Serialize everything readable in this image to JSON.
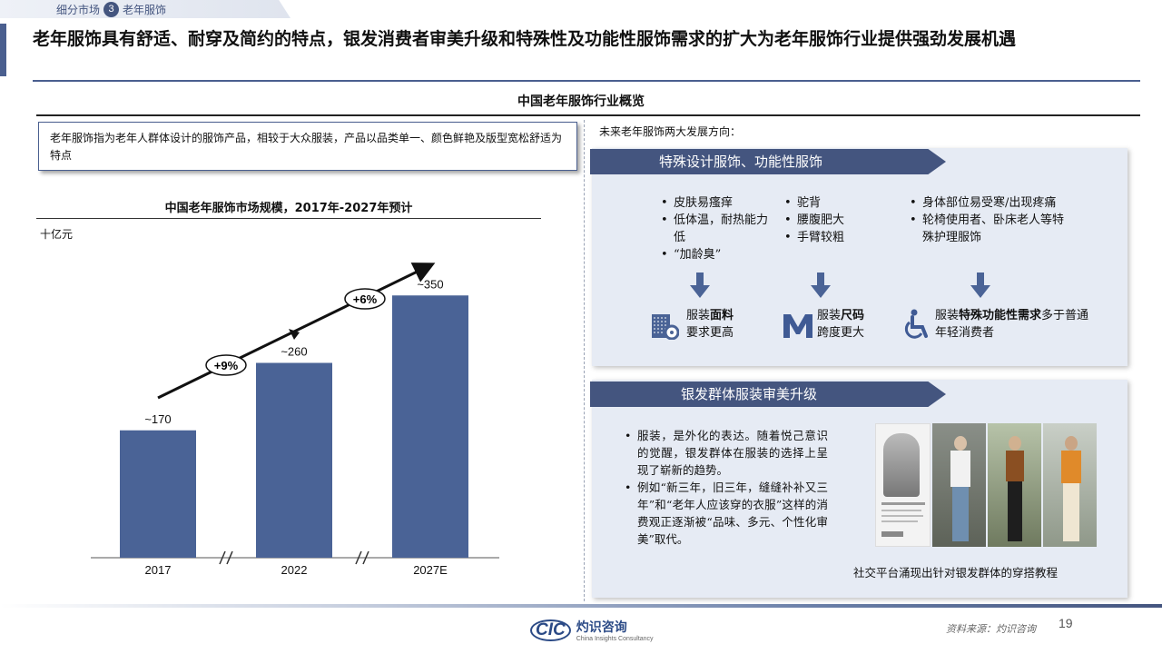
{
  "breadcrumb": {
    "section": "细分市场",
    "number": "3",
    "topic": "老年服饰"
  },
  "headline": "老年服饰具有舒适、耐穿及简约的特点，银发消费者审美升级和特殊性及功能性服饰需求的扩大为老年服饰行业提供强劲发展机遇",
  "section_title": "中国老年服饰行业概览",
  "definition": "老年服饰指为老年人群体设计的服饰产品，相较于大众服装，产品以品类单一、颜色鲜艳及版型宽松舒适为特点",
  "chart_data": {
    "type": "bar",
    "title": "中国老年服饰市场规模，2017年-2027年预计",
    "unit": "十亿元",
    "categories": [
      "2017",
      "2022",
      "2027E"
    ],
    "values": [
      170,
      260,
      350
    ],
    "value_labels": [
      "~170",
      "~260",
      "~350"
    ],
    "growth_labels": [
      "+9%",
      "+6%"
    ],
    "ylim": [
      0,
      400
    ],
    "bar_color": "#4a6396",
    "grid": false
  },
  "future": {
    "label": "未来老年服饰两大发展方向：",
    "dir1": {
      "title": "特殊设计服饰、功能性服饰",
      "col1": [
        "皮肤易瘙痒",
        "低体温，耐热能力低",
        "“加龄臭”"
      ],
      "col2": [
        "驼背",
        "腰腹肥大",
        "手臂较粗"
      ],
      "col3": [
        "身体部位易受寒/出现疼痛",
        "轮椅使用者、卧床老人等特殊护理服饰"
      ],
      "feat1": {
        "pre": "服装",
        "bold": "面料",
        "post": "要求更高"
      },
      "feat2": {
        "pre": "服装",
        "bold": "尺码",
        "post": "跨度更大"
      },
      "feat3": {
        "pre": "服装",
        "bold": "特殊功能性需求",
        "post": "多于普通年轻消费者"
      }
    },
    "dir2": {
      "title": "银发群体服装审美升级",
      "bullets": [
        "服装，是外化的表达。随着悦己意识的觉醒，银发群体在服装的选择上呈现了崭新的趋势。",
        "例如“新三年，旧三年，缝缝补补又三年”和“老年人应该穿的衣服”这样的消费观正逐渐被“品味、多元、个性化审美”取代。"
      ],
      "caption": "社交平台涌现出针对银发群体的穿搭教程"
    }
  },
  "footer": {
    "logo_mark": "CIC",
    "logo_cn": "灼识咨询",
    "logo_en": "China Insights Consultancy",
    "source": "资料来源：灼识咨询",
    "page": "19"
  },
  "icons": [
    "fabric-icon",
    "size-m-icon",
    "wheelchair-icon",
    "down-arrow-icon"
  ]
}
